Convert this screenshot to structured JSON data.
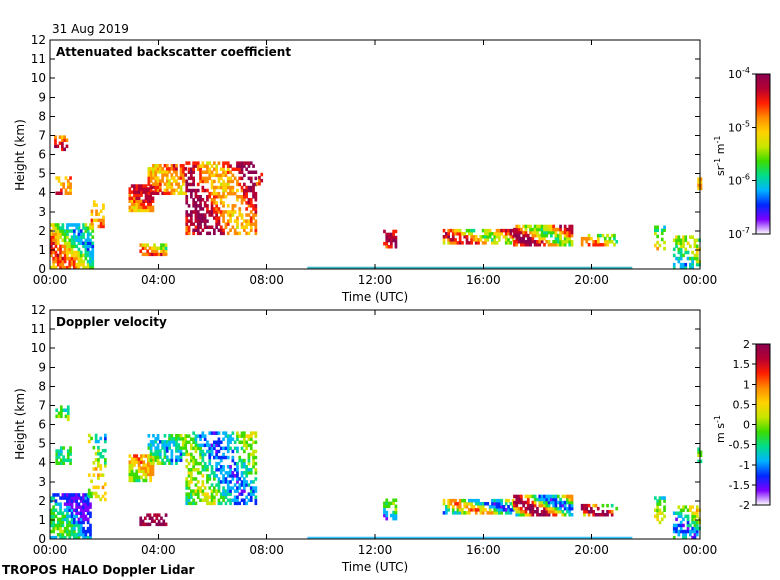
{
  "date_label": "31 Aug 2019",
  "footer": "TROPOS HALO Doppler Lidar",
  "colors": {
    "rainbow": [
      "#ffffff",
      "#7d00ff",
      "#0028ff",
      "#00b4ff",
      "#00dc8c",
      "#3cdc00",
      "#c8e600",
      "#ffd200",
      "#ff8c00",
      "#ff1e00",
      "#b40032",
      "#8c0050"
    ],
    "surface": "#00a0b4"
  },
  "chart_data": [
    {
      "type": "heatmap",
      "title": "Attenuated backscatter coefficient",
      "xlabel": "Time (UTC)",
      "ylabel": "Height (km)",
      "xticks": [
        "00:00",
        "04:00",
        "08:00",
        "12:00",
        "16:00",
        "20:00",
        "00:00"
      ],
      "xlim_hours": [
        0,
        24
      ],
      "yticks": [
        "0",
        "1",
        "2",
        "3",
        "4",
        "5",
        "6",
        "7",
        "8",
        "9",
        "10",
        "11",
        "12"
      ],
      "ylim_km": [
        0,
        12
      ],
      "grid": false,
      "colorbar": {
        "scale": "log",
        "ticks": [
          {
            "base": "10",
            "exp": "-4"
          },
          {
            "base": "10",
            "exp": "-5"
          },
          {
            "base": "10",
            "exp": "-6"
          },
          {
            "base": "10",
            "exp": "-7"
          }
        ],
        "unit": {
          "a": "sr",
          "a_exp": "-1",
          "b": " m",
          "b_exp": "-1"
        },
        "range": [
          1e-07,
          0.0001
        ]
      },
      "features": [
        {
          "t0": 0.0,
          "t1": 1.6,
          "h0": 0.0,
          "h1": 2.3,
          "c0": 3,
          "c1": 9,
          "d": 0.8
        },
        {
          "t0": 0.15,
          "t1": 0.65,
          "h0": 6.2,
          "h1": 7.0,
          "c0": 8,
          "c1": 10,
          "d": 0.5
        },
        {
          "t0": 0.2,
          "t1": 0.75,
          "h0": 3.9,
          "h1": 4.8,
          "c0": 7,
          "c1": 10,
          "d": 0.6
        },
        {
          "t0": 1.5,
          "t1": 2.0,
          "h0": 2.0,
          "h1": 3.5,
          "c0": 6,
          "c1": 8,
          "d": 0.4
        },
        {
          "t0": 2.9,
          "t1": 3.8,
          "h0": 3.0,
          "h1": 4.4,
          "c0": 7,
          "c1": 10,
          "d": 0.85
        },
        {
          "t0": 3.3,
          "t1": 4.3,
          "h0": 0.7,
          "h1": 1.2,
          "c0": 5,
          "c1": 9,
          "d": 0.8
        },
        {
          "t0": 3.6,
          "t1": 5.0,
          "h0": 3.9,
          "h1": 5.5,
          "c0": 7,
          "c1": 10,
          "d": 0.7
        },
        {
          "t0": 5.0,
          "t1": 7.6,
          "h0": 1.8,
          "h1": 5.6,
          "c0": 7,
          "c1": 11,
          "d": 0.55
        },
        {
          "t0": 7.6,
          "t1": 7.8,
          "h0": 4.4,
          "h1": 5.0,
          "c0": 8,
          "c1": 9,
          "d": 0.6
        },
        {
          "t0": 12.3,
          "t1": 12.8,
          "h0": 1.1,
          "h1": 2.0,
          "c0": 6,
          "c1": 11,
          "d": 0.7
        },
        {
          "t0": 14.5,
          "t1": 17.1,
          "h0": 1.3,
          "h1": 2.0,
          "c0": 5,
          "c1": 10,
          "d": 0.7
        },
        {
          "t0": 17.1,
          "t1": 19.3,
          "h0": 1.2,
          "h1": 2.2,
          "c0": 5,
          "c1": 11,
          "d": 0.8
        },
        {
          "t0": 19.6,
          "t1": 20.9,
          "h0": 1.2,
          "h1": 1.8,
          "c0": 5,
          "c1": 9,
          "d": 0.55
        },
        {
          "t0": 22.3,
          "t1": 22.7,
          "h0": 1.0,
          "h1": 2.2,
          "c0": 4,
          "c1": 7,
          "d": 0.5
        },
        {
          "t0": 23.0,
          "t1": 24.0,
          "h0": 0.0,
          "h1": 1.6,
          "c0": 3,
          "c1": 6,
          "d": 0.55
        },
        {
          "t0": 23.9,
          "t1": 24.0,
          "h0": 4.0,
          "h1": 4.7,
          "c0": 7,
          "c1": 8,
          "d": 0.8
        }
      ]
    },
    {
      "type": "heatmap",
      "title": "Doppler velocity",
      "xlabel": "Time (UTC)",
      "ylabel": "Height (km)",
      "xticks": [
        "00:00",
        "04:00",
        "08:00",
        "12:00",
        "16:00",
        "20:00",
        "00:00"
      ],
      "xlim_hours": [
        0,
        24
      ],
      "yticks": [
        "0",
        "1",
        "2",
        "3",
        "4",
        "5",
        "6",
        "7",
        "8",
        "9",
        "10",
        "11",
        "12"
      ],
      "ylim_km": [
        0,
        12
      ],
      "grid": false,
      "colorbar": {
        "scale": "linear",
        "ticks": [
          "2",
          "1.5",
          "1",
          "0.5",
          "0",
          "-0.5",
          "-1",
          "-1.5",
          "-2"
        ],
        "unit": {
          "a": "m s",
          "a_exp": "-1"
        },
        "range": [
          -2,
          2
        ]
      },
      "features": [
        {
          "t0": 0.0,
          "t1": 1.5,
          "h0": 0.0,
          "h1": 2.3,
          "c0": 1,
          "c1": 5,
          "d": 0.75
        },
        {
          "t0": 0.2,
          "t1": 0.65,
          "h0": 6.2,
          "h1": 7.0,
          "c0": 4,
          "c1": 6,
          "d": 0.5
        },
        {
          "t0": 0.2,
          "t1": 0.75,
          "h0": 3.9,
          "h1": 4.8,
          "c0": 4,
          "c1": 6,
          "d": 0.6
        },
        {
          "t0": 1.4,
          "t1": 2.0,
          "h0": 2.0,
          "h1": 5.5,
          "c0": 2,
          "c1": 7,
          "d": 0.35
        },
        {
          "t0": 2.9,
          "t1": 3.8,
          "h0": 3.0,
          "h1": 4.4,
          "c0": 5,
          "c1": 8,
          "d": 0.8
        },
        {
          "t0": 3.3,
          "t1": 4.3,
          "h0": 0.7,
          "h1": 1.2,
          "c0": 10,
          "c1": 11,
          "d": 0.7
        },
        {
          "t0": 3.6,
          "t1": 5.0,
          "h0": 3.9,
          "h1": 5.5,
          "c0": 3,
          "c1": 6,
          "d": 0.7
        },
        {
          "t0": 5.0,
          "t1": 7.6,
          "h0": 1.8,
          "h1": 5.6,
          "c0": 2,
          "c1": 6,
          "d": 0.55
        },
        {
          "t0": 12.3,
          "t1": 12.8,
          "h0": 1.0,
          "h1": 2.0,
          "c0": 2,
          "c1": 5,
          "d": 0.65
        },
        {
          "t0": 14.5,
          "t1": 17.1,
          "h0": 1.3,
          "h1": 2.0,
          "c0": 2,
          "c1": 8,
          "d": 0.7
        },
        {
          "t0": 17.1,
          "t1": 19.3,
          "h0": 1.2,
          "h1": 2.2,
          "c0": 2,
          "c1": 11,
          "d": 0.8
        },
        {
          "t0": 19.6,
          "t1": 20.9,
          "h0": 1.2,
          "h1": 1.8,
          "c0": 4,
          "c1": 11,
          "d": 0.55
        },
        {
          "t0": 22.3,
          "t1": 22.7,
          "h0": 0.8,
          "h1": 2.2,
          "c0": 3,
          "c1": 6,
          "d": 0.5
        },
        {
          "t0": 23.0,
          "t1": 24.0,
          "h0": 0.0,
          "h1": 1.6,
          "c0": 2,
          "c1": 7,
          "d": 0.55
        },
        {
          "t0": 23.9,
          "t1": 24.0,
          "h0": 4.0,
          "h1": 4.7,
          "c0": 4,
          "c1": 5,
          "d": 0.8
        }
      ]
    }
  ]
}
